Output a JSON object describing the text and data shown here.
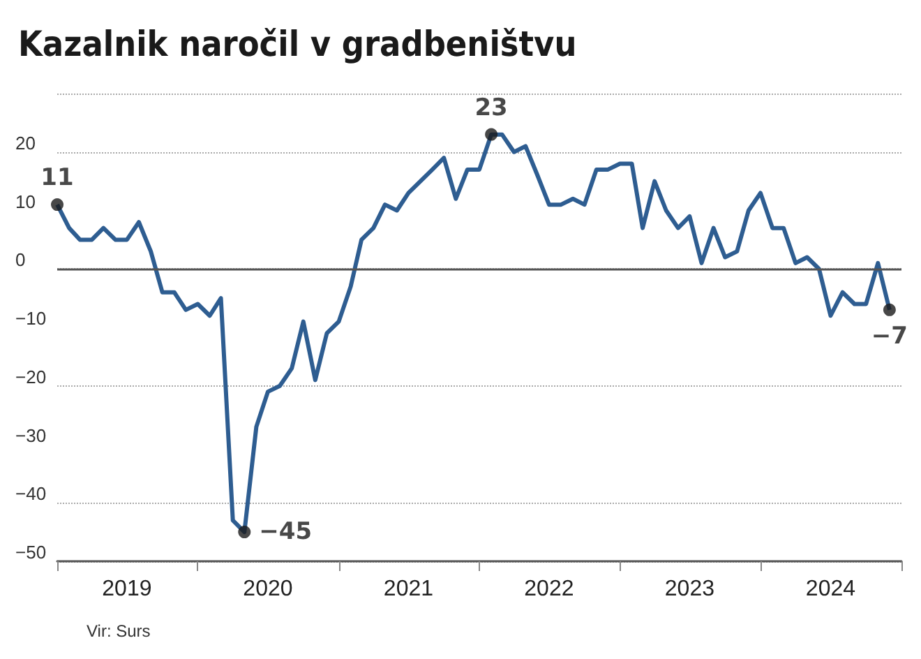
{
  "chart_data": {
    "type": "line",
    "title": "Kazalnik naročil v gradbeništvu",
    "x": [
      "2019-01",
      "2019-02",
      "2019-03",
      "2019-04",
      "2019-05",
      "2019-06",
      "2019-07",
      "2019-08",
      "2019-09",
      "2019-10",
      "2019-11",
      "2019-12",
      "2020-01",
      "2020-02",
      "2020-03",
      "2020-04",
      "2020-05",
      "2020-06",
      "2020-07",
      "2020-08",
      "2020-09",
      "2020-10",
      "2020-11",
      "2020-12",
      "2021-01",
      "2021-02",
      "2021-03",
      "2021-04",
      "2021-05",
      "2021-06",
      "2021-07",
      "2021-08",
      "2021-09",
      "2021-10",
      "2021-11",
      "2021-12",
      "2022-01",
      "2022-02",
      "2022-03",
      "2022-04",
      "2022-05",
      "2022-06",
      "2022-07",
      "2022-08",
      "2022-09",
      "2022-10",
      "2022-11",
      "2022-12",
      "2023-01",
      "2023-02",
      "2023-03",
      "2023-04",
      "2023-05",
      "2023-06",
      "2023-07",
      "2023-08",
      "2023-09",
      "2023-10",
      "2023-11",
      "2023-12",
      "2024-01",
      "2024-02",
      "2024-03",
      "2024-04",
      "2024-05",
      "2024-06",
      "2024-07",
      "2024-08",
      "2024-09",
      "2024-10",
      "2024-11",
      "2024-12"
    ],
    "series": [
      {
        "color": "#2e5d91",
        "values": [
          11,
          7,
          5,
          5,
          7,
          5,
          5,
          8,
          3,
          -4,
          -4,
          -7,
          -6,
          -8,
          -5,
          -43,
          -45,
          -27,
          -21,
          -20,
          -17,
          -9,
          -19,
          -11,
          -9,
          -3,
          5,
          7,
          11,
          10,
          13,
          15,
          17,
          19,
          12,
          17,
          17,
          23,
          23,
          20,
          21,
          16,
          11,
          11,
          12,
          11,
          17,
          17,
          18,
          18,
          7,
          15,
          10,
          7,
          9,
          1,
          7,
          2,
          3,
          10,
          13,
          7,
          7,
          1,
          2,
          0,
          -8,
          -4,
          -6,
          -6,
          1,
          -7
        ]
      }
    ],
    "xlim": [
      "2019-01",
      "2025-01"
    ],
    "xticks": [
      {
        "value": "2019-01",
        "label": null
      },
      {
        "value": "2019-07",
        "label": "2019"
      },
      {
        "value": "2020-01",
        "label": null
      },
      {
        "value": "2020-07",
        "label": "2020"
      },
      {
        "value": "2021-01",
        "label": null
      },
      {
        "value": "2021-07",
        "label": "2021"
      },
      {
        "value": "2022-01",
        "label": null
      },
      {
        "value": "2022-07",
        "label": "2022"
      },
      {
        "value": "2023-01",
        "label": null
      },
      {
        "value": "2023-07",
        "label": "2023"
      },
      {
        "value": "2024-01",
        "label": null
      },
      {
        "value": "2024-07",
        "label": "2024"
      },
      {
        "value": "2025-01",
        "label": null
      }
    ],
    "ylim": [
      -50,
      30
    ],
    "yticks": [
      -50,
      -40,
      -30,
      -20,
      -10,
      0,
      10,
      20,
      {
        "value": 30,
        "label": null
      }
    ],
    "grid": "y",
    "ref_lines": [
      {
        "axis": "y",
        "value": 0,
        "color": "#555555"
      }
    ],
    "annotations": [
      {
        "text": "11",
        "x": "2019-01",
        "y": 11
      },
      {
        "text": "−45",
        "x": "2020-05",
        "y": -45
      },
      {
        "text": "23",
        "x": "2022-02",
        "y": 23
      },
      {
        "text": "−7",
        "x": "2024-12",
        "y": -7
      },
      "Vir: Surs"
    ]
  }
}
